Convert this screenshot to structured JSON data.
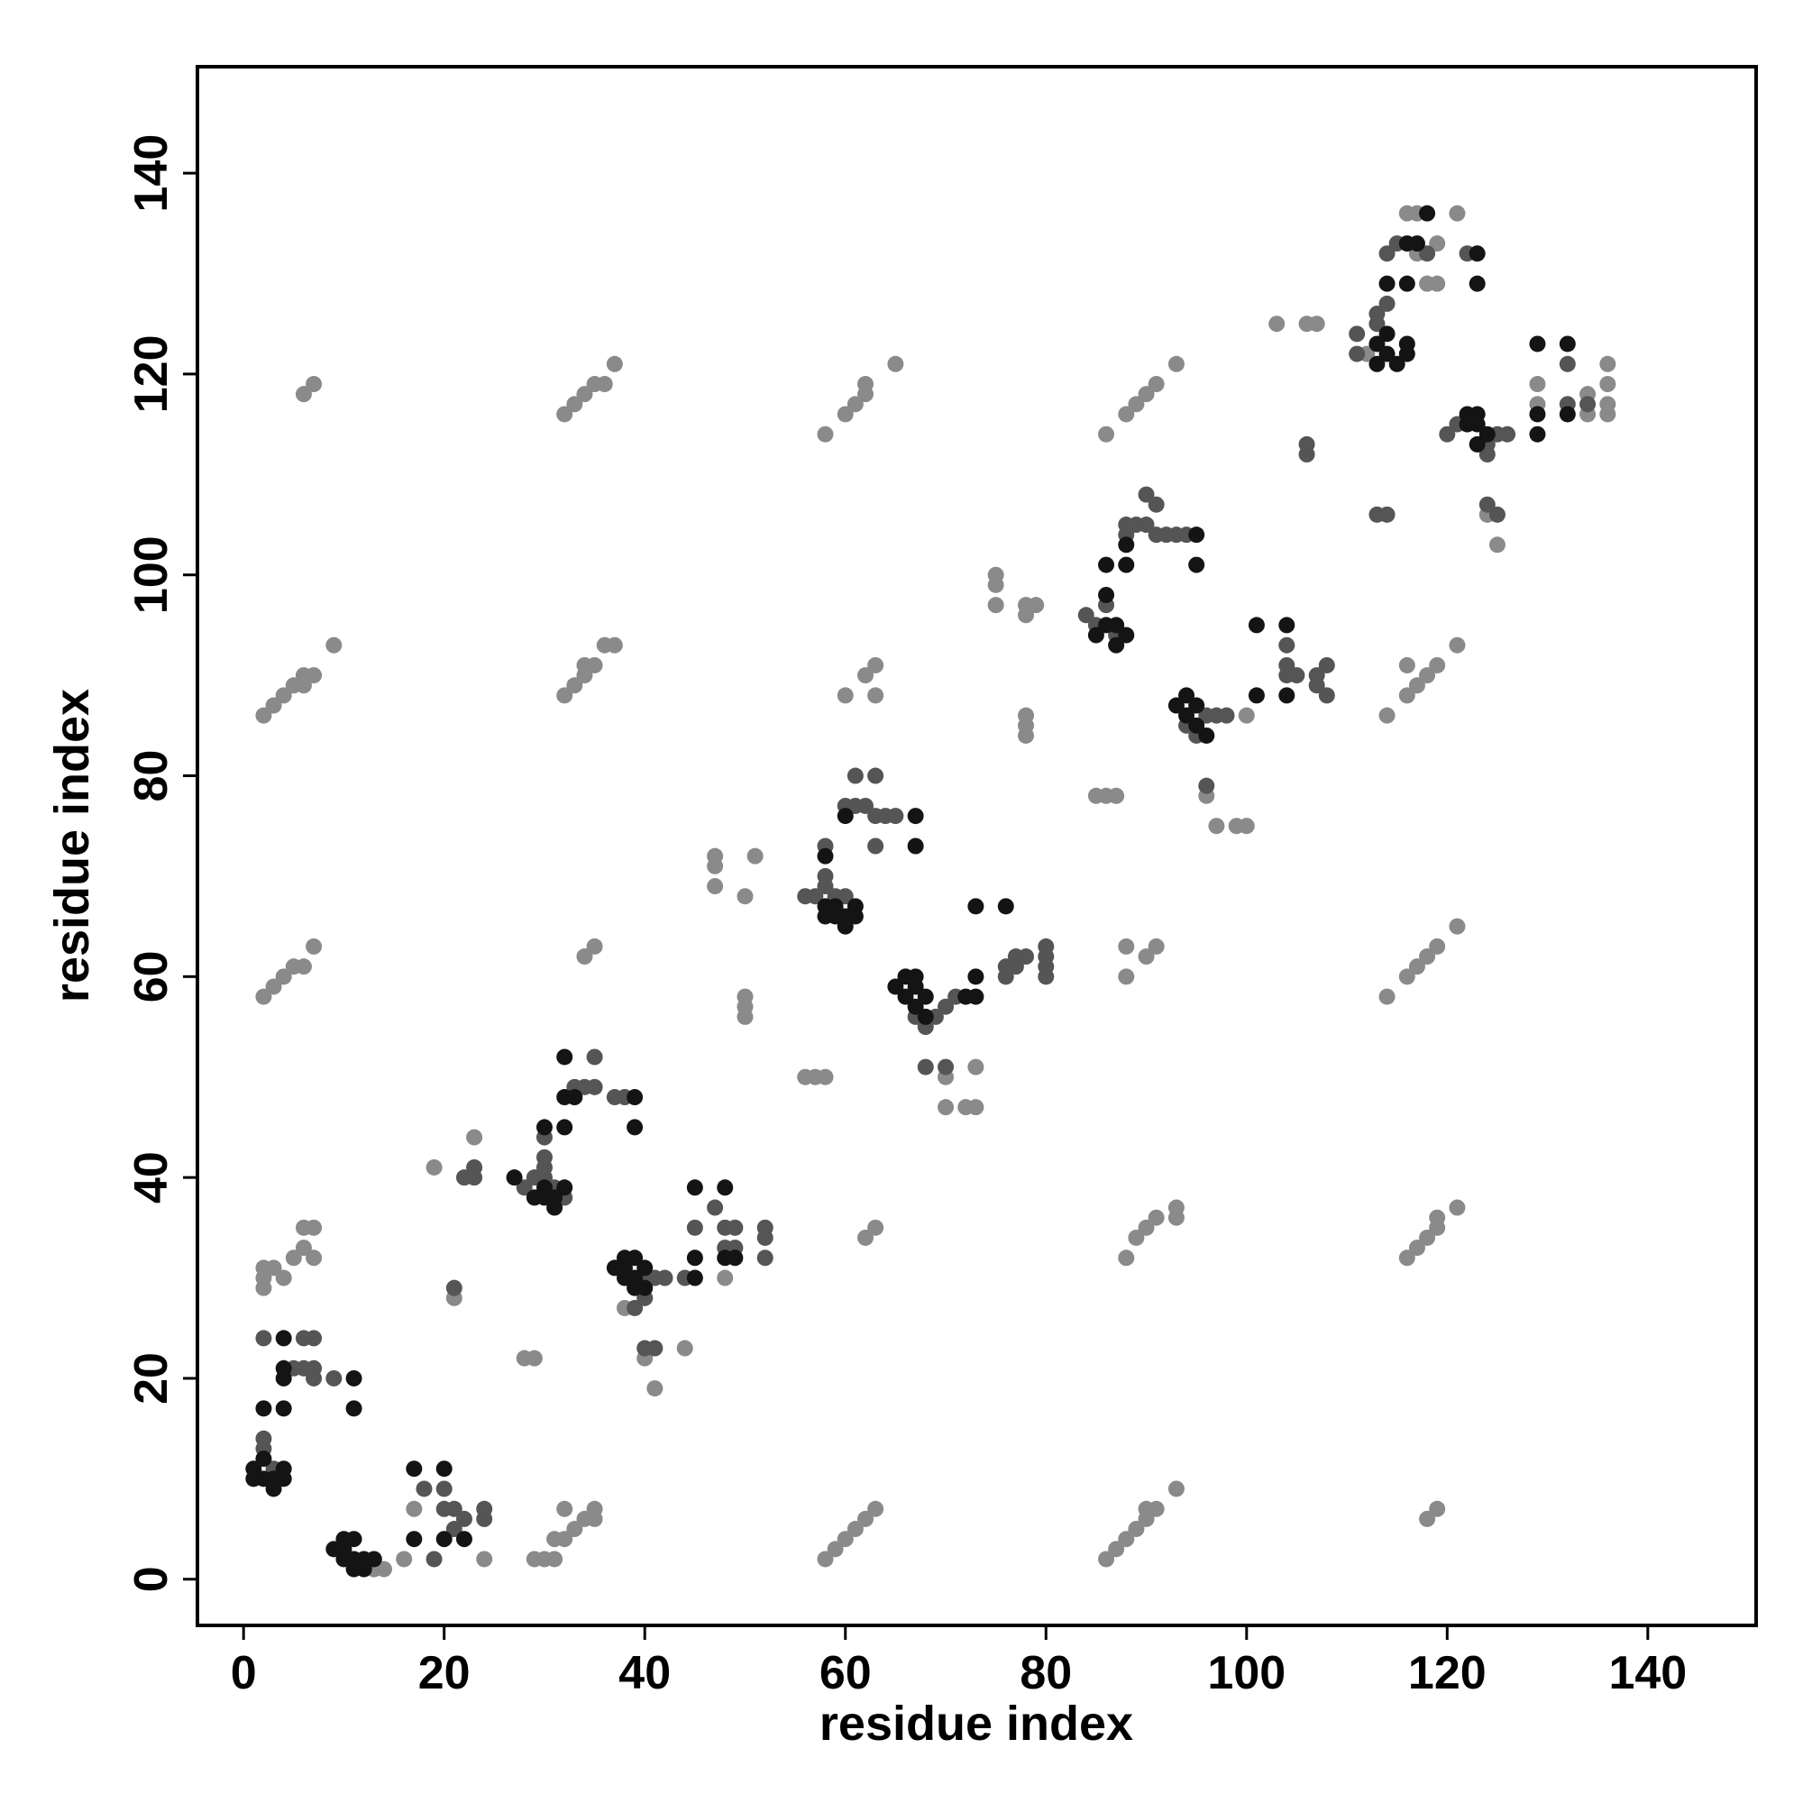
{
  "chart_data": {
    "type": "scatter",
    "x_label": "residue index",
    "y_label": "residue index",
    "xlim": [
      -4.6,
      150.8
    ],
    "ylim": [
      -4.6,
      150.6
    ],
    "xticks": [
      0,
      20,
      40,
      60,
      80,
      100,
      120,
      140
    ],
    "yticks": [
      0,
      20,
      40,
      60,
      80,
      100,
      120,
      140
    ],
    "series": [
      {
        "color": "#8a8a8a",
        "x": [
          6,
          7,
          32,
          33,
          34,
          35,
          36,
          37,
          58,
          60,
          61,
          62,
          62,
          65,
          86,
          88,
          89,
          90,
          91,
          93,
          2,
          3,
          4,
          5,
          6,
          6,
          7,
          9,
          32,
          33,
          34,
          34,
          35,
          36,
          37,
          60,
          62,
          63,
          63,
          114,
          116,
          117,
          118,
          119,
          121,
          116,
          2,
          3,
          4,
          5,
          6,
          7,
          34,
          35,
          88,
          88,
          90,
          91,
          114,
          116,
          117,
          118,
          119,
          121,
          62,
          63,
          88,
          89,
          90,
          91,
          93,
          93,
          116,
          117,
          118,
          119,
          119,
          121,
          2,
          2,
          2,
          3,
          4,
          5,
          6,
          7,
          7,
          6,
          58,
          59,
          60,
          61,
          62,
          63,
          86,
          87,
          88,
          89,
          90,
          90,
          91,
          93,
          118,
          119,
          29,
          30,
          31,
          31,
          32,
          32,
          33,
          34,
          35,
          35,
          13,
          14,
          16,
          17,
          24,
          19,
          23,
          21,
          47,
          47,
          47,
          51,
          50,
          50,
          50,
          50,
          56,
          57,
          58,
          75,
          75,
          75,
          78,
          78,
          79,
          78,
          78,
          78,
          85,
          86,
          87,
          97,
          99,
          100,
          96,
          70,
          70,
          72,
          73,
          73,
          41,
          40,
          44,
          103,
          106,
          107,
          125,
          124,
          112,
          116,
          117,
          121,
          118,
          119,
          117,
          119,
          134,
          136,
          136,
          136,
          136,
          134,
          129,
          129,
          28,
          29,
          48,
          40,
          38,
          100
        ],
        "values": [
          118,
          119,
          116,
          117,
          118,
          119,
          119,
          121,
          114,
          116,
          117,
          118,
          119,
          121,
          114,
          116,
          117,
          118,
          119,
          121,
          86,
          87,
          88,
          89,
          89,
          90,
          90,
          93,
          88,
          89,
          90,
          91,
          91,
          93,
          93,
          88,
          90,
          91,
          88,
          86,
          88,
          89,
          90,
          91,
          93,
          91,
          58,
          59,
          60,
          61,
          61,
          63,
          62,
          63,
          60,
          63,
          62,
          63,
          58,
          60,
          61,
          62,
          63,
          65,
          34,
          35,
          32,
          34,
          35,
          36,
          36,
          37,
          32,
          33,
          34,
          35,
          36,
          37,
          29,
          30,
          31,
          31,
          30,
          32,
          33,
          32,
          35,
          35,
          2,
          3,
          4,
          5,
          6,
          7,
          2,
          3,
          4,
          5,
          6,
          7,
          7,
          9,
          6,
          7,
          2,
          2,
          2,
          4,
          4,
          7,
          5,
          6,
          6,
          7,
          1,
          1,
          2,
          7,
          2,
          41,
          44,
          28,
          69,
          71,
          72,
          72,
          68,
          56,
          57,
          58,
          50,
          50,
          50,
          97,
          99,
          100,
          96,
          97,
          97,
          84,
          85,
          86,
          78,
          78,
          78,
          75,
          75,
          75,
          78,
          50,
          47,
          47,
          47,
          51,
          19,
          22,
          23,
          125,
          125,
          125,
          103,
          106,
          122,
          136,
          136,
          136,
          129,
          129,
          132,
          133,
          116,
          116,
          117,
          119,
          121,
          118,
          119,
          117,
          22,
          22,
          30,
          28,
          27,
          86
        ]
      },
      {
        "color": "#555555",
        "x": [
          2,
          5,
          6,
          6,
          7,
          7,
          7,
          9,
          2,
          2,
          3,
          19,
          18,
          20,
          20,
          21,
          21,
          22,
          24,
          24,
          21,
          22,
          23,
          23,
          28,
          29,
          30,
          30,
          30,
          30,
          31,
          32,
          33,
          34,
          35,
          35,
          37,
          38,
          39,
          40,
          40,
          41,
          42,
          40,
          41,
          44,
          45,
          47,
          48,
          49,
          52,
          52,
          48,
          49,
          52,
          56,
          57,
          58,
          58,
          59,
          60,
          58,
          60,
          61,
          61,
          62,
          63,
          63,
          64,
          65,
          63,
          67,
          68,
          69,
          70,
          71,
          68,
          70,
          76,
          76,
          77,
          77,
          78,
          80,
          80,
          80,
          80,
          84,
          85,
          86,
          87,
          88,
          88,
          89,
          90,
          90,
          91,
          91,
          92,
          93,
          94,
          94,
          95,
          96,
          97,
          98,
          96,
          104,
          104,
          104,
          105,
          107,
          107,
          108,
          108,
          111,
          111,
          113,
          113,
          114,
          114,
          115,
          118,
          122,
          121,
          120,
          124,
          124,
          125,
          126,
          124,
          125,
          132,
          132,
          134,
          106,
          106,
          113,
          114
        ],
        "values": [
          24,
          21,
          21,
          24,
          24,
          21,
          20,
          20,
          13,
          14,
          11,
          2,
          9,
          9,
          7,
          5,
          7,
          6,
          6,
          7,
          29,
          40,
          40,
          41,
          39,
          40,
          40,
          41,
          42,
          44,
          39,
          38,
          49,
          49,
          49,
          52,
          48,
          48,
          27,
          28,
          30,
          30,
          30,
          23,
          23,
          30,
          35,
          37,
          35,
          35,
          34,
          35,
          33,
          33,
          32,
          68,
          68,
          70,
          69,
          68,
          68,
          73,
          77,
          77,
          80,
          77,
          76,
          80,
          76,
          76,
          73,
          56,
          55,
          56,
          57,
          58,
          51,
          51,
          60,
          61,
          61,
          62,
          62,
          61,
          62,
          63,
          60,
          96,
          95,
          97,
          94,
          104,
          105,
          105,
          105,
          108,
          104,
          107,
          104,
          104,
          104,
          85,
          84,
          86,
          86,
          86,
          79,
          90,
          91,
          93,
          90,
          89,
          90,
          91,
          88,
          124,
          122,
          125,
          126,
          127,
          132,
          133,
          132,
          132,
          115,
          114,
          112,
          113,
          114,
          114,
          107,
          106,
          121,
          117,
          117,
          112,
          113,
          106,
          106
        ]
      },
      {
        "color": "#141414",
        "x": [
          1,
          1,
          2,
          2,
          3,
          3,
          4,
          4,
          2,
          4,
          4,
          4,
          4,
          11,
          11,
          9,
          10,
          10,
          10,
          11,
          11,
          11,
          12,
          12,
          13,
          17,
          17,
          20,
          20,
          22,
          27,
          29,
          30,
          30,
          31,
          31,
          32,
          30,
          32,
          32,
          32,
          33,
          39,
          39,
          37,
          38,
          38,
          38,
          39,
          39,
          39,
          40,
          40,
          45,
          45,
          45,
          48,
          48,
          49,
          58,
          58,
          59,
          59,
          60,
          60,
          61,
          61,
          58,
          60,
          67,
          67,
          65,
          66,
          66,
          67,
          67,
          67,
          68,
          68,
          73,
          73,
          73,
          76,
          72,
          87,
          87,
          88,
          86,
          85,
          86,
          86,
          88,
          88,
          95,
          95,
          93,
          94,
          94,
          95,
          95,
          96,
          101,
          101,
          104,
          104,
          113,
          113,
          114,
          114,
          115,
          116,
          116,
          114,
          116,
          116,
          117,
          118,
          123,
          123,
          122,
          122,
          123,
          123,
          123,
          124,
          129,
          129,
          129,
          132,
          132
        ],
        "values": [
          10,
          11,
          12,
          10,
          10,
          9,
          11,
          10,
          17,
          17,
          20,
          21,
          24,
          20,
          17,
          3,
          2,
          3,
          4,
          1,
          2,
          4,
          1,
          2,
          2,
          11,
          4,
          11,
          4,
          4,
          40,
          38,
          38,
          39,
          37,
          38,
          39,
          45,
          45,
          48,
          52,
          48,
          48,
          45,
          31,
          30,
          31,
          32,
          29,
          30,
          32,
          29,
          31,
          30,
          32,
          39,
          32,
          39,
          32,
          66,
          67,
          67,
          66,
          66,
          65,
          67,
          66,
          72,
          76,
          76,
          73,
          59,
          58,
          60,
          57,
          59,
          60,
          58,
          56,
          58,
          60,
          67,
          67,
          58,
          93,
          95,
          94,
          95,
          94,
          98,
          101,
          101,
          103,
          104,
          101,
          87,
          86,
          88,
          87,
          85,
          84,
          95,
          88,
          95,
          88,
          121,
          123,
          122,
          124,
          121,
          122,
          123,
          129,
          129,
          133,
          133,
          136,
          132,
          129,
          115,
          116,
          113,
          115,
          116,
          114,
          114,
          116,
          123,
          123,
          116
        ]
      }
    ]
  }
}
